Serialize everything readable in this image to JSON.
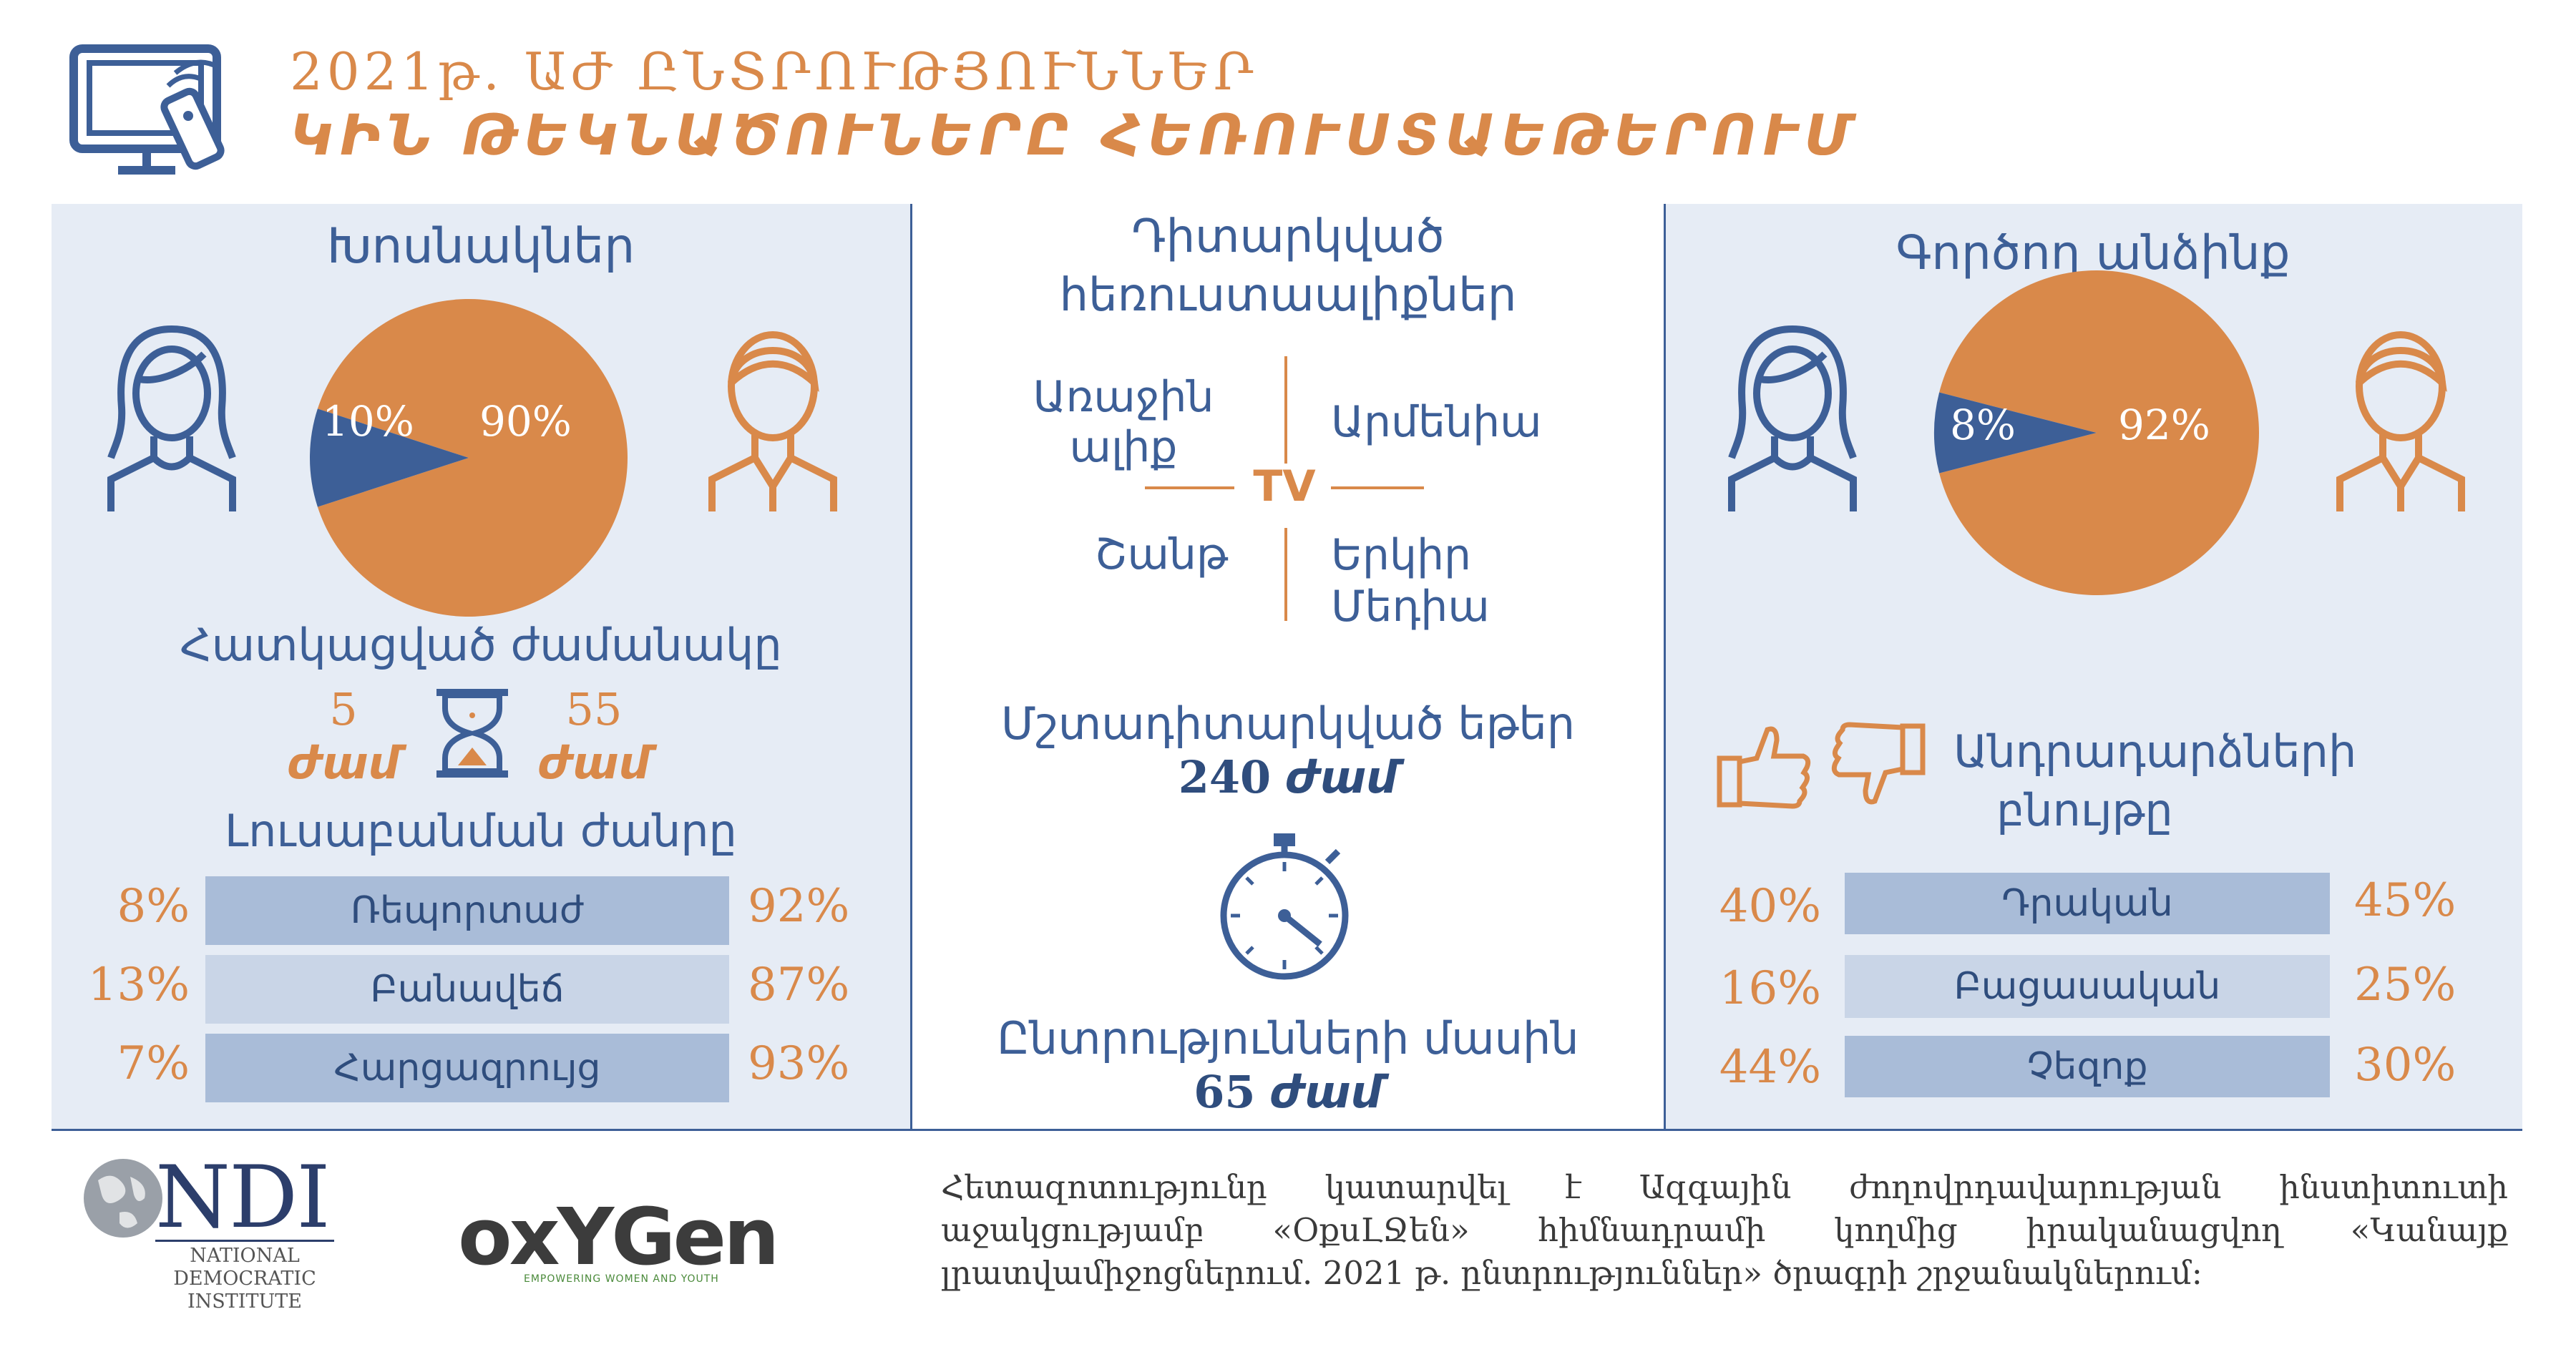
{
  "header": {
    "line1": "2021թ. ԱԺ ԸՆՏՐՈՒԹՅՈՒՆՆԵՐ",
    "line2": "ԿԻՆ ԹԵԿՆԱԾՈՒՆԵՐԸ ՀԵՌՈՒՍՏԱԵԹԵՐՈՒՄ",
    "icon": "tv-remote-icon"
  },
  "left": {
    "title": "Խոսնակներ",
    "pie": {
      "female": 10,
      "male": 90,
      "female_label": "10%",
      "male_label": "90%"
    },
    "time_title": "Հատկացված ժամանակը",
    "time_female_num": "5",
    "time_female_unit": "ժամ",
    "time_male_num": "55",
    "time_male_unit": "ժամ",
    "genre_title": "Լուսաբանման ժանրը",
    "genres": [
      {
        "left": "8%",
        "label": "Ռեպորտաժ",
        "right": "92%"
      },
      {
        "left": "13%",
        "label": "Բանավեճ",
        "right": "87%"
      },
      {
        "left": "7%",
        "label": "Հարցազրույց",
        "right": "93%"
      }
    ]
  },
  "middle": {
    "title_line1": "Դիտարկված",
    "title_line2": "հեռուստաալիքներ",
    "channel_tl_1": "Առաջին",
    "channel_tl_2": "ալիք",
    "channel_tr": "Արմենիա",
    "channel_bl": "Շանթ",
    "channel_br_1": "Երկիր",
    "channel_br_2": "Մեդիա",
    "tv": "TV",
    "monitored_title": "Մշտադիտարկված եթեր",
    "monitored_num": "240",
    "monitored_unit": "ժամ",
    "about_title": "Ընտրությունների մասին",
    "about_num": "65",
    "about_unit": "ժամ"
  },
  "right": {
    "title": "Գործող անձինք",
    "pie": {
      "female": 8,
      "male": 92,
      "female_label": "8%",
      "male_label": "92%"
    },
    "ref_title_1": "Անդրադարձների",
    "ref_title_2": "բնույթը",
    "refs": [
      {
        "left": "40%",
        "label": "Դրական",
        "right": "45%"
      },
      {
        "left": "16%",
        "label": "Բացասական",
        "right": "25%"
      },
      {
        "left": "44%",
        "label": "Չեզոք",
        "right": "30%"
      }
    ]
  },
  "footer": {
    "ndi_logo": "NDI",
    "ndi_sub1": "NATIONAL",
    "ndi_sub2": "DEMOCRATIC",
    "ndi_sub3": "INSTITUTE",
    "oxygen_logo": "oxYGen",
    "oxygen_tag": "EMPOWERING WOMEN AND YOUTH",
    "note_line1": "Հետազոտությունը կատարվել է Ազգային ժողովրդավարության ինստիտուտի",
    "note_line2": "աջակցությամբ «ՕքսԼՋեն» հիմնադրամի կողմից իրականացվող «Կանայք",
    "note_line3": "լրատվամիջոցներում. 2021 թ. ընտրություններ» ծրագրի շրջանակներում:"
  },
  "colors": {
    "blue": "#3d5f97",
    "orange": "#d9894a",
    "panel": "#e6ecf5"
  }
}
